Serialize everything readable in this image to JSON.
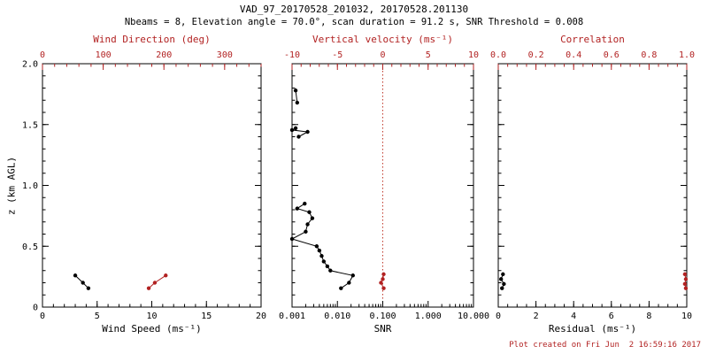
{
  "header": {
    "title": "VAD_97_20170528_201032, 20170528.201130",
    "subtitle": "Nbeams = 8, Elevation angle = 70.0°, scan duration = 91.2 s, SNR Threshold = 0.008"
  },
  "ylabel": "z (km AGL)",
  "footer": {
    "created": "Plot created on Fri Jun  2 16:59:16 2017"
  },
  "colors": {
    "primary": "#000000",
    "secondary": "#b22222"
  },
  "chart_data": [
    {
      "type": "scatter",
      "xlabel": "Wind Speed (ms⁻¹)",
      "top_xlabel": "Wind Direction (deg)",
      "xscale": "linear",
      "xlim": [
        0,
        20
      ],
      "xticks": [
        0,
        5,
        10,
        15,
        20
      ],
      "xtick_labels": [
        "0",
        "5",
        "10",
        "15",
        "20"
      ],
      "x_minor": 1,
      "top_xlim": [
        0,
        360
      ],
      "top_xticks": [
        0,
        100,
        200,
        300
      ],
      "top_xtick_labels": [
        "0",
        "100",
        "200",
        "300"
      ],
      "top_minor": 20,
      "ylim": [
        0,
        2
      ],
      "yticks": [
        0,
        0.5,
        1.0,
        1.5,
        2.0
      ],
      "ytick_labels": [
        "0",
        "0.5",
        "1.0",
        "1.5",
        "2.0"
      ],
      "y_minor": 0.1,
      "series": [
        {
          "name": "wind-speed",
          "color": "#000000",
          "axis": "bottom",
          "points": [
            [
              3.0,
              0.26
            ],
            [
              3.7,
              0.2
            ],
            [
              4.2,
              0.155
            ]
          ]
        },
        {
          "name": "wind-direction",
          "color": "#b22222",
          "axis": "top",
          "points": [
            [
              175,
              0.155
            ],
            [
              185,
              0.2
            ],
            [
              203,
              0.26
            ]
          ]
        }
      ]
    },
    {
      "type": "scatter",
      "xlabel": "SNR",
      "top_xlabel": "Vertical velocity (ms⁻¹)",
      "xscale": "log",
      "xlim": [
        0.001,
        10.0
      ],
      "xticks": [
        0.001,
        0.01,
        0.1,
        1.0,
        10.0
      ],
      "xtick_labels": [
        "0.001",
        "0.010",
        "0.100",
        "1.000",
        "10.000"
      ],
      "top_xlim": [
        -10,
        10
      ],
      "top_xticks": [
        -10,
        -5,
        0,
        5,
        10
      ],
      "top_xtick_labels": [
        "-10",
        "-5",
        "0",
        "5",
        "10"
      ],
      "top_minor": 1,
      "ylim": [
        0,
        2
      ],
      "yticks": [
        0,
        0.5,
        1.0,
        1.5,
        2.0
      ],
      "ytick_labels": [
        "",
        "",
        "",
        "",
        ""
      ],
      "y_minor": 0.1,
      "ref_line": {
        "value": 0,
        "axis": "top",
        "color": "#c0392b",
        "style": "dotted"
      },
      "series": [
        {
          "name": "snr-profile-low",
          "color": "#000000",
          "axis": "bottom",
          "points": [
            [
              0.012,
              0.155
            ],
            [
              0.018,
              0.2
            ],
            [
              0.022,
              0.26
            ],
            [
              0.007,
              0.3
            ],
            [
              0.006,
              0.335
            ],
            [
              0.005,
              0.375
            ],
            [
              0.0045,
              0.42
            ],
            [
              0.004,
              0.465
            ],
            [
              0.0035,
              0.5
            ],
            [
              0.001,
              0.56
            ],
            [
              0.002,
              0.62
            ],
            [
              0.0022,
              0.68
            ],
            [
              0.0028,
              0.73
            ],
            [
              0.0024,
              0.78
            ],
            [
              0.0013,
              0.81
            ],
            [
              0.0019,
              0.85
            ]
          ]
        },
        {
          "name": "snr-profile-mid",
          "color": "#000000",
          "axis": "bottom",
          "points": [
            [
              0.0014,
              1.4
            ],
            [
              0.0022,
              1.44
            ],
            [
              0.001,
              1.455
            ],
            [
              0.0012,
              1.47
            ]
          ]
        },
        {
          "name": "snr-profile-high",
          "color": "#000000",
          "axis": "bottom",
          "points": [
            [
              0.0013,
              1.68
            ],
            [
              0.0012,
              1.78
            ]
          ]
        },
        {
          "name": "vertical-velocity",
          "color": "#b22222",
          "axis": "top",
          "points": [
            [
              0.1,
              0.155
            ],
            [
              -0.2,
              0.2
            ],
            [
              0.0,
              0.23
            ],
            [
              0.1,
              0.27
            ]
          ]
        }
      ]
    },
    {
      "type": "scatter",
      "xlabel": "Residual (ms⁻¹)",
      "top_xlabel": "Correlation",
      "xscale": "linear",
      "xlim": [
        0,
        10
      ],
      "xticks": [
        0,
        2,
        4,
        6,
        8,
        10
      ],
      "xtick_labels": [
        "0",
        "2",
        "4",
        "6",
        "8",
        "10"
      ],
      "x_minor": 0.5,
      "top_xlim": [
        0,
        1
      ],
      "top_xticks": [
        0,
        0.2,
        0.4,
        0.6,
        0.8,
        1.0
      ],
      "top_xtick_labels": [
        "0.0",
        "0.2",
        "0.4",
        "0.6",
        "0.8",
        "1.0"
      ],
      "top_minor": 0.05,
      "ylim": [
        0,
        2
      ],
      "yticks": [
        0,
        0.5,
        1.0,
        1.5,
        2.0
      ],
      "ytick_labels": [
        "",
        "",
        "",
        "",
        ""
      ],
      "y_minor": 0.1,
      "series": [
        {
          "name": "residual",
          "color": "#000000",
          "axis": "bottom",
          "points": [
            [
              0.2,
              0.155
            ],
            [
              0.3,
              0.19
            ],
            [
              0.15,
              0.23
            ],
            [
              0.25,
              0.27
            ]
          ]
        },
        {
          "name": "correlation",
          "color": "#b22222",
          "axis": "top",
          "points": [
            [
              0.995,
              0.155
            ],
            [
              0.99,
              0.19
            ],
            [
              0.995,
              0.23
            ],
            [
              0.99,
              0.27
            ]
          ]
        }
      ]
    }
  ]
}
